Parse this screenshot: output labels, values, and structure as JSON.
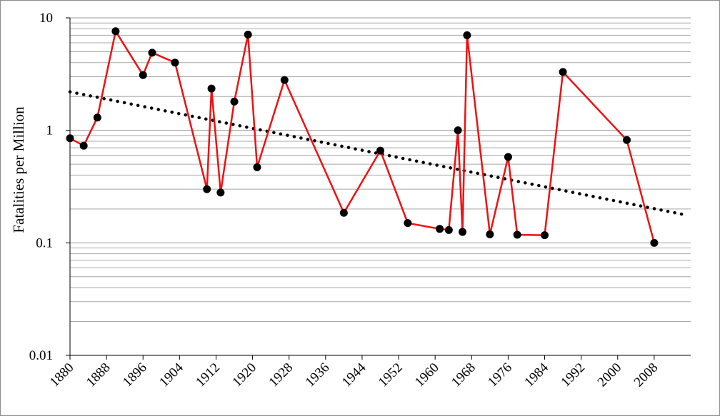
{
  "chart_data": {
    "type": "line",
    "title": "",
    "xlabel": "",
    "ylabel": "Fatalities per Million",
    "yscale": "log",
    "ylim": [
      0.01,
      10
    ],
    "xlim": [
      1880,
      2016
    ],
    "grid": "horizontal major and minor gridlines",
    "legend": "none",
    "x_ticks": [
      1880,
      1888,
      1896,
      1904,
      1912,
      1920,
      1928,
      1936,
      1944,
      1952,
      1960,
      1968,
      1976,
      1984,
      1992,
      2000,
      2008
    ],
    "y_ticks": [
      {
        "value": 0.01,
        "label": "0.01"
      },
      {
        "value": 0.1,
        "label": "0.1"
      },
      {
        "value": 1,
        "label": "1"
      },
      {
        "value": 10,
        "label": "10"
      }
    ],
    "series": [
      {
        "color": "#ee1111",
        "marker_color": "#000000",
        "points": [
          {
            "x": 1880,
            "y": 0.85
          },
          {
            "x": 1883,
            "y": 0.73
          },
          {
            "x": 1886,
            "y": 1.3
          },
          {
            "x": 1890,
            "y": 7.6
          },
          {
            "x": 1896,
            "y": 3.1
          },
          {
            "x": 1898,
            "y": 4.9
          },
          {
            "x": 1903,
            "y": 4.0
          },
          {
            "x": 1910,
            "y": 0.3
          },
          {
            "x": 1911,
            "y": 2.35
          },
          {
            "x": 1913,
            "y": 0.28
          },
          {
            "x": 1916,
            "y": 1.8
          },
          {
            "x": 1919,
            "y": 7.1
          },
          {
            "x": 1921,
            "y": 0.47
          },
          {
            "x": 1927,
            "y": 2.8
          },
          {
            "x": 1940,
            "y": 0.185
          },
          {
            "x": 1948,
            "y": 0.66
          },
          {
            "x": 1954,
            "y": 0.15
          },
          {
            "x": 1961,
            "y": 0.133
          },
          {
            "x": 1963,
            "y": 0.13
          },
          {
            "x": 1965,
            "y": 1.0
          },
          {
            "x": 1966,
            "y": 0.125
          },
          {
            "x": 1967,
            "y": 7.0
          },
          {
            "x": 1972,
            "y": 0.119
          },
          {
            "x": 1976,
            "y": 0.58
          },
          {
            "x": 1978,
            "y": 0.118
          },
          {
            "x": 1984,
            "y": 0.117
          },
          {
            "x": 1988,
            "y": 3.3
          },
          {
            "x": 2002,
            "y": 0.82
          },
          {
            "x": 2008,
            "y": 0.1
          }
        ]
      }
    ],
    "trendline": {
      "style": "dotted",
      "color": "#000000",
      "points": [
        {
          "x": 1880,
          "y": 2.2
        },
        {
          "x": 2014,
          "y": 0.18
        }
      ]
    }
  }
}
